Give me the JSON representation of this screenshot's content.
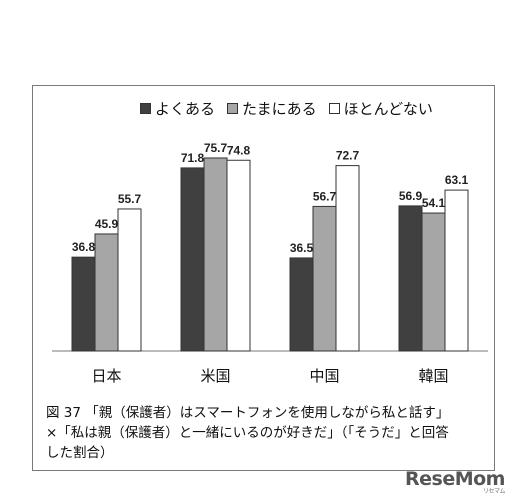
{
  "chart_data": {
    "type": "bar",
    "categories": [
      "日本",
      "米国",
      "中国",
      "韓国"
    ],
    "series": [
      {
        "name": "よくある",
        "color": "#404040",
        "values": [
          36.8,
          71.8,
          36.5,
          56.9
        ]
      },
      {
        "name": "たまにある",
        "color": "#a6a6a6",
        "values": [
          45.9,
          75.7,
          56.7,
          54.1
        ]
      },
      {
        "name": "ほとんどない",
        "color": "#ffffff",
        "values": [
          55.7,
          74.8,
          72.7,
          63.1
        ]
      }
    ],
    "ylim": [
      0,
      100
    ],
    "grid": false,
    "legend_position": "top-center"
  },
  "caption": {
    "line1": "図 37 「親（保護者）はスマートフォンを使用しながら私と話す」",
    "line2": "×「私は親（保護者）と一緒にいるのが好きだ」（「そうだ」と回答",
    "line3": "した割合）"
  },
  "watermark": {
    "brand": "ReseMom",
    "sub": "リセマム"
  }
}
